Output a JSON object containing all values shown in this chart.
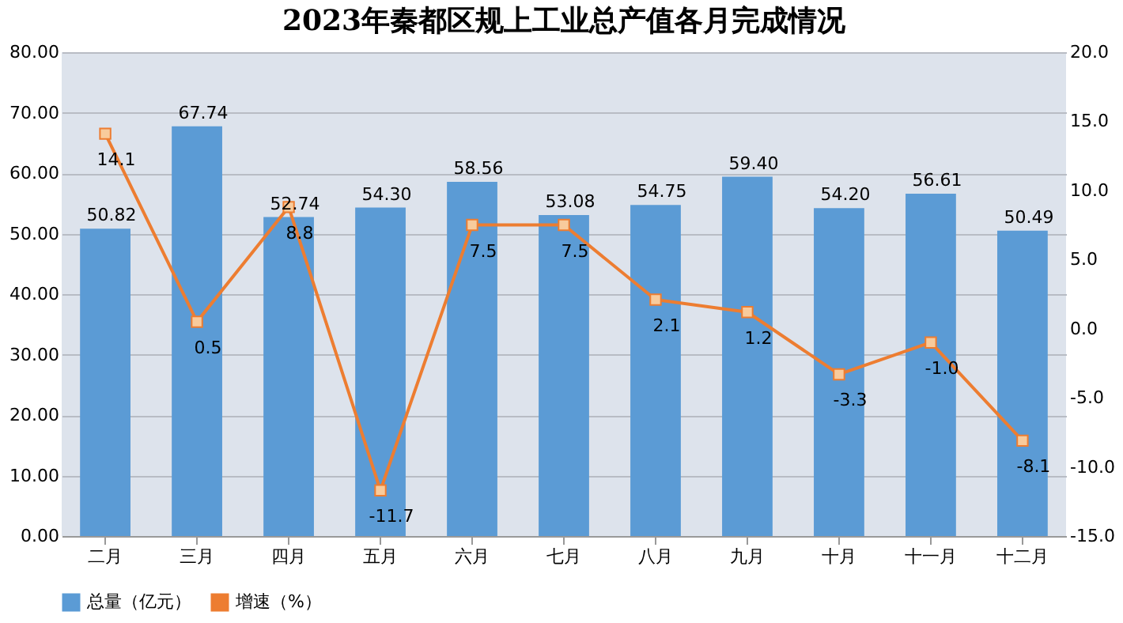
{
  "chart_data": {
    "type": "bar",
    "title": "2023年秦都区规上工业总产值各月完成情况",
    "categories": [
      "二月",
      "三月",
      "四月",
      "五月",
      "六月",
      "七月",
      "八月",
      "九月",
      "十月",
      "十一月",
      "十二月"
    ],
    "series": [
      {
        "name": "总量（亿元）",
        "color": "#5b9bd5",
        "values": [
          50.82,
          67.74,
          52.74,
          54.3,
          58.56,
          53.08,
          54.75,
          59.4,
          54.2,
          56.61,
          50.49
        ],
        "value_labels": [
          "50.82",
          "67.74",
          "52.74",
          "54.30",
          "58.56",
          "53.08",
          "54.75",
          "59.40",
          "54.20",
          "56.61",
          "50.49"
        ]
      },
      {
        "name": "增速（%）",
        "type": "line",
        "axis": "y2",
        "color": "#ed7d31",
        "marker": "square",
        "values": [
          14.1,
          0.5,
          8.8,
          -11.7,
          7.5,
          7.5,
          2.1,
          1.2,
          -3.3,
          -1.0,
          -8.1
        ],
        "value_labels": [
          "14.1",
          "0.5",
          "8.8",
          "-11.7",
          "7.5",
          "7.5",
          "2.1",
          "1.2",
          "-3.3",
          "-1.0",
          "-8.1"
        ]
      }
    ],
    "ylim": [
      0,
      80
    ],
    "yticks": [
      {
        "value": 0,
        "label": "0.00"
      },
      {
        "value": 10,
        "label": "10.00"
      },
      {
        "value": 20,
        "label": "20.00"
      },
      {
        "value": 30,
        "label": "30.00"
      },
      {
        "value": 40,
        "label": "40.00"
      },
      {
        "value": 50,
        "label": "50.00"
      },
      {
        "value": 60,
        "label": "60.00"
      },
      {
        "value": 70,
        "label": "70.00"
      },
      {
        "value": 80,
        "label": "80.00"
      }
    ],
    "y2lim": [
      -15,
      20
    ],
    "y2ticks": [
      {
        "value": -15,
        "label": "-15.0"
      },
      {
        "value": -10,
        "label": "-10.0"
      },
      {
        "value": -5,
        "label": "-5.0"
      },
      {
        "value": 0,
        "label": "0.0"
      },
      {
        "value": 5,
        "label": "5.0"
      },
      {
        "value": 10,
        "label": "10.0"
      },
      {
        "value": 15,
        "label": "15.0"
      },
      {
        "value": 20,
        "label": "20.0"
      }
    ],
    "grid": "y",
    "legend": "bottom"
  }
}
